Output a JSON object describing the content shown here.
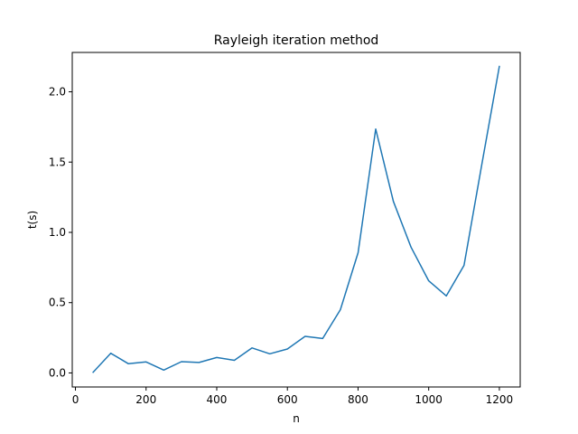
{
  "chart_data": {
    "type": "line",
    "title": "Rayleigh iteration method",
    "xlabel": "n",
    "ylabel": "t(s)",
    "xlim": [
      -9,
      1259
    ],
    "ylim": [
      -0.1,
      2.28
    ],
    "xticks": [
      0,
      200,
      400,
      600,
      800,
      1000,
      1200
    ],
    "yticks": [
      0.0,
      0.5,
      1.0,
      1.5,
      2.0
    ],
    "xtick_labels": [
      "0",
      "200",
      "400",
      "600",
      "800",
      "1000",
      "1200"
    ],
    "ytick_labels": [
      "0.0",
      "0.5",
      "1.0",
      "1.5",
      "2.0"
    ],
    "grid": false,
    "series": [
      {
        "color": "#1f77b4",
        "x": [
          50,
          100,
          150,
          200,
          250,
          300,
          350,
          400,
          450,
          500,
          550,
          600,
          650,
          700,
          750,
          800,
          850,
          900,
          950,
          1000,
          1050,
          1100,
          1150,
          1200
        ],
        "y": [
          0.005,
          0.14,
          0.065,
          0.078,
          0.02,
          0.08,
          0.074,
          0.11,
          0.09,
          0.178,
          0.136,
          0.17,
          0.26,
          0.245,
          0.45,
          0.855,
          1.735,
          1.22,
          0.895,
          0.655,
          0.548,
          0.765,
          1.48,
          2.18
        ]
      }
    ]
  }
}
